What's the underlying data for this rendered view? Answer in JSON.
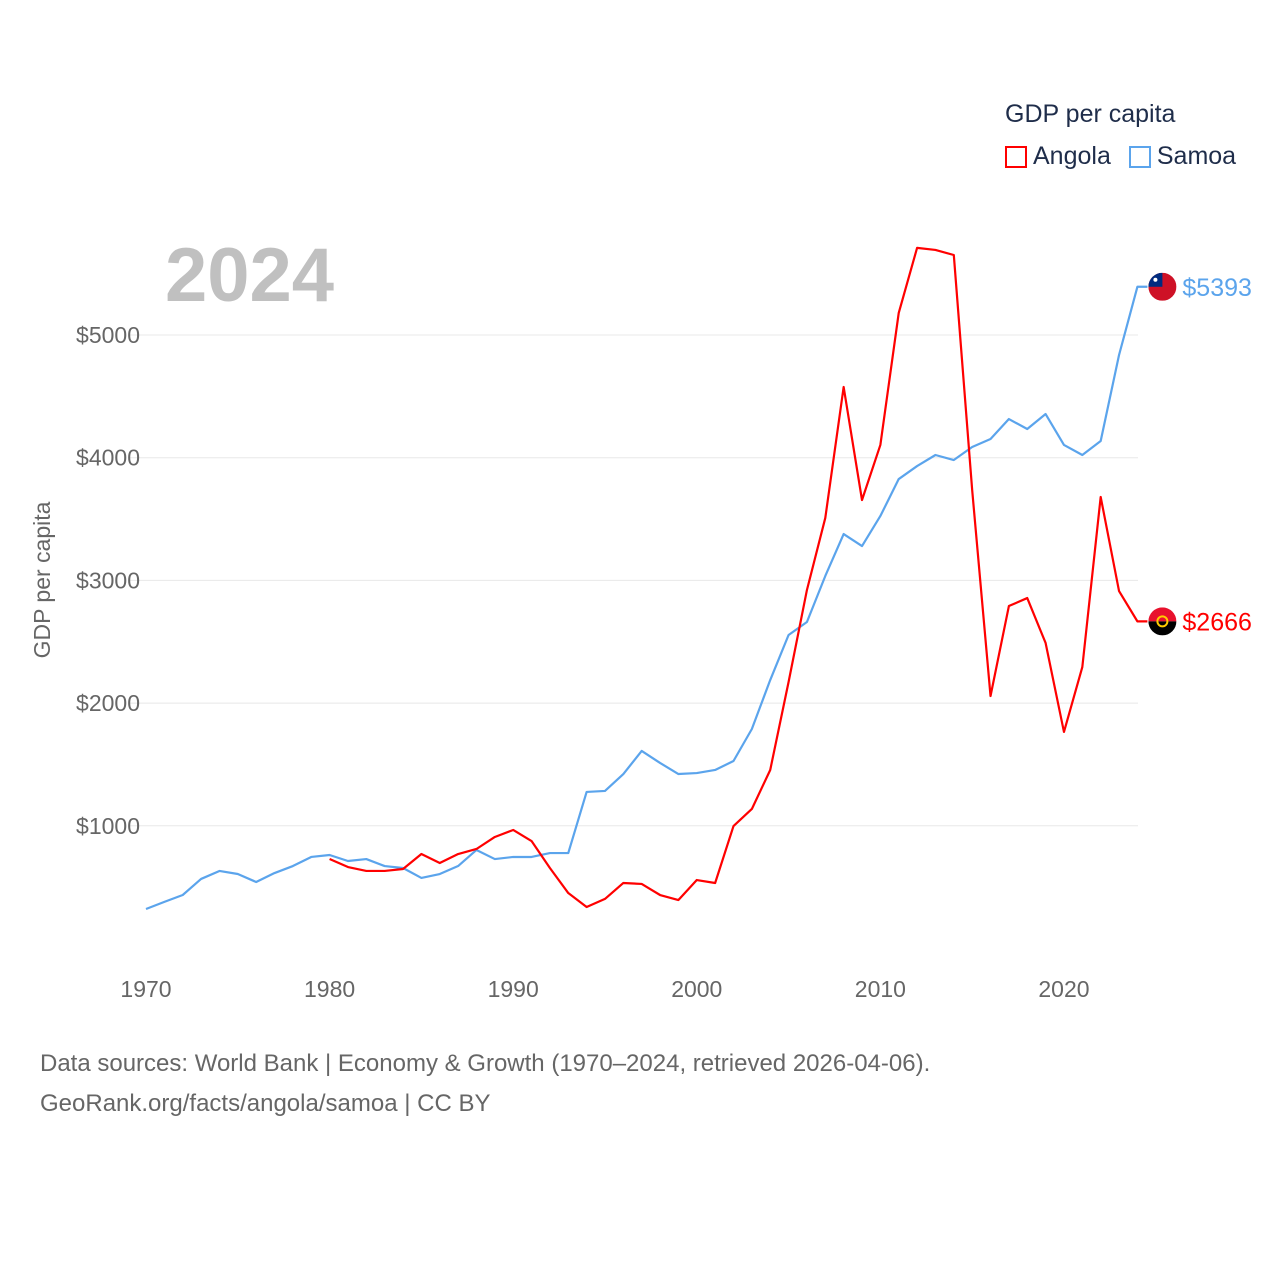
{
  "legend": {
    "title": "GDP per capita",
    "items": [
      {
        "name": "Angola",
        "color": "#ff0000"
      },
      {
        "name": "Samoa",
        "color": "#5ba4ec"
      }
    ]
  },
  "year_label": "2024",
  "footer": {
    "line1": "Data sources: World Bank | Economy & Growth (1970–2024, retrieved 2026-04-06).",
    "line2": "GeoRank.org/facts/angola/samoa | CC BY"
  },
  "chart_data": {
    "type": "line",
    "title": "GDP per capita",
    "xlabel": "",
    "ylabel": "GDP per capita",
    "xlim": [
      1970,
      2024
    ],
    "ylim": [
      0,
      5800
    ],
    "x_ticks": [
      1970,
      1980,
      1990,
      2000,
      2010,
      2020
    ],
    "x_tick_labels": [
      "1970",
      "1980",
      "1990",
      "2000",
      "2010",
      "2020"
    ],
    "y_ticks": [
      1000,
      2000,
      3000,
      4000,
      5000
    ],
    "y_tick_labels": [
      "$1000",
      "$2000",
      "$3000",
      "$4000",
      "$5000"
    ],
    "grid": true,
    "legend_position": "top-right",
    "series": [
      {
        "name": "Samoa",
        "color": "#5ba4ec",
        "end_label": "$5393",
        "start_year": 1970,
        "values": [
          322,
          380,
          436,
          567,
          632,
          607,
          542,
          615,
          672,
          746,
          762,
          713,
          729,
          672,
          656,
          575,
          607,
          672,
          803,
          729,
          746,
          746,
          778,
          778,
          1276,
          1284,
          1422,
          1610,
          1512,
          1422,
          1430,
          1455,
          1528,
          1789,
          2188,
          2555,
          2661,
          3036,
          3378,
          3280,
          3525,
          3826,
          3932,
          4022,
          3981,
          4087,
          4152,
          4315,
          4234,
          4356,
          4104,
          4022,
          4136,
          4837,
          5393
        ]
      },
      {
        "name": "Angola",
        "color": "#ff0000",
        "end_label": "$2666",
        "start_year": 1980,
        "values": [
          729,
          664,
          632,
          632,
          648,
          770,
          697,
          770,
          811,
          909,
          966,
          876,
          656,
          452,
          338,
          404,
          534,
          526,
          436,
          395,
          558,
          534,
          998,
          1137,
          1455,
          2172,
          2922,
          3509,
          4576,
          3655,
          4104,
          5180,
          5710,
          5693,
          5652,
          3737,
          2058,
          2791,
          2856,
          2490,
          1765,
          2294,
          3680,
          2913,
          2666
        ]
      }
    ]
  }
}
